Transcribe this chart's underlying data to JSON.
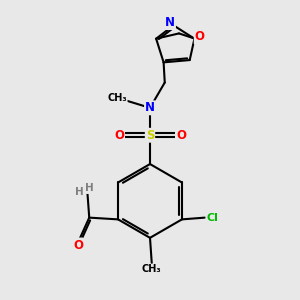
{
  "background_color": "#e8e8e8",
  "atom_colors": {
    "C": "#000000",
    "N": "#0000ff",
    "O": "#ff0000",
    "S": "#cccc00",
    "Cl": "#00bb00",
    "H": "#7f7f7f"
  },
  "bond_color": "#000000",
  "bond_width": 1.5
}
